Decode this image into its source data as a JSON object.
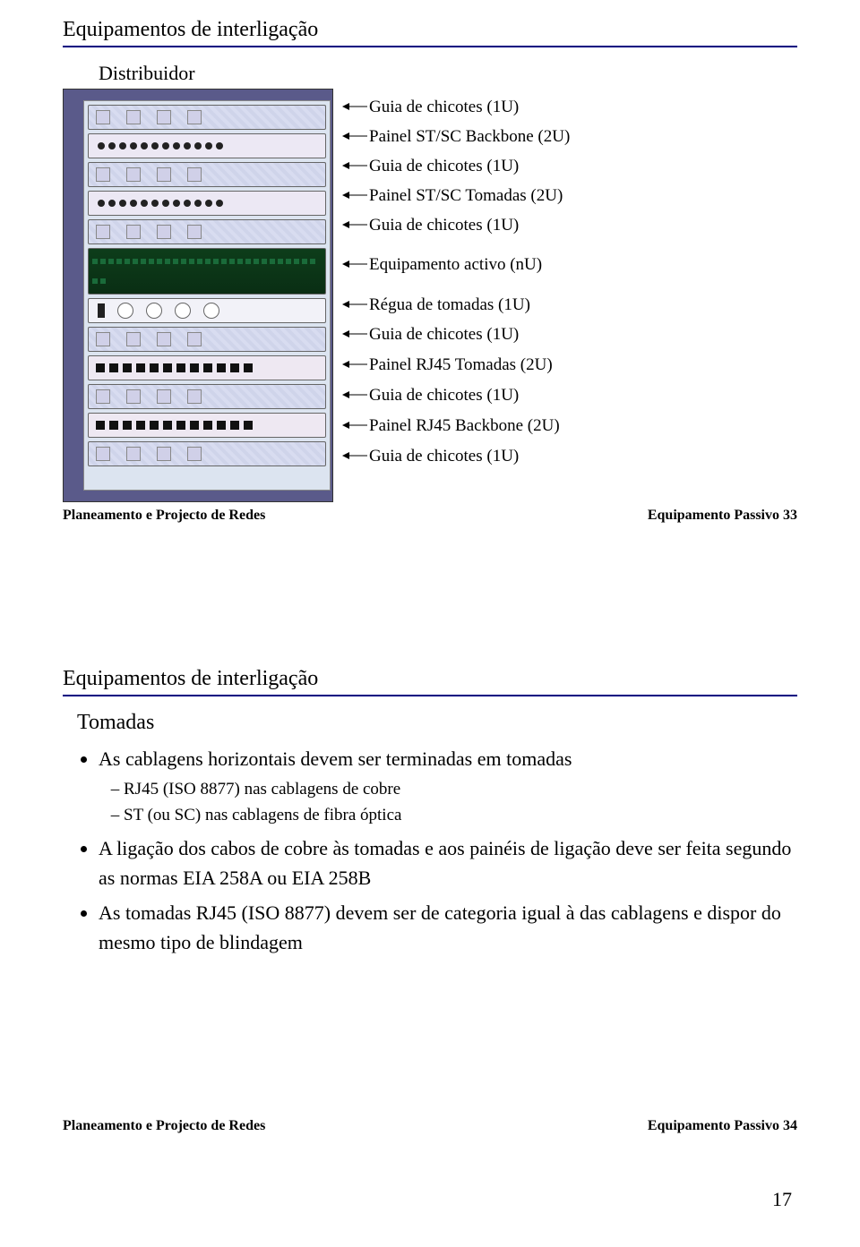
{
  "slide1": {
    "title": "Equipamentos de interligação",
    "distribuidor": "Distribuidor",
    "labels": [
      "Guia de chicotes (1U)",
      "Painel ST/SC Backbone  (2U)",
      "Guia de chicotes (1U)",
      "Painel ST/SC Tomadas  (2U)",
      "Guia de chicotes (1U)",
      "Equipamento activo (nU)",
      "Régua de tomadas  (1U)",
      "Guia de chicotes (1U)",
      "Painel RJ45 Tomadas  (2U)",
      "Guia de chicotes (1U)",
      "Painel RJ45 Backbone  (2U)",
      "Guia de chicotes (1U)"
    ],
    "label_heights": [
      32,
      34,
      32,
      34,
      32,
      56,
      34,
      32,
      36,
      32,
      36,
      32
    ],
    "footer_left": "Planeamento e Projecto de Redes",
    "footer_right": "Equipamento Passivo 33"
  },
  "slide2": {
    "title": "Equipamentos de interligação",
    "subheading": "Tomadas",
    "bullets": [
      {
        "text": "As cablagens horizontais devem ser terminadas em tomadas",
        "subs": [
          "RJ45 (ISO 8877) nas cablagens de cobre",
          "ST (ou SC) nas cablagens de fibra óptica"
        ]
      },
      {
        "text": "A ligação dos cabos de cobre às tomadas e aos painéis de ligação deve ser feita segundo as normas EIA 258A ou EIA 258B",
        "subs": []
      },
      {
        "text": "As tomadas RJ45 (ISO 8877) devem ser de categoria igual à das cablagens e dispor do mesmo tipo de blindagem",
        "subs": []
      }
    ],
    "footer_left": "Planeamento e Projecto de Redes",
    "footer_right": "Equipamento Passivo 34"
  },
  "page_number": "17"
}
